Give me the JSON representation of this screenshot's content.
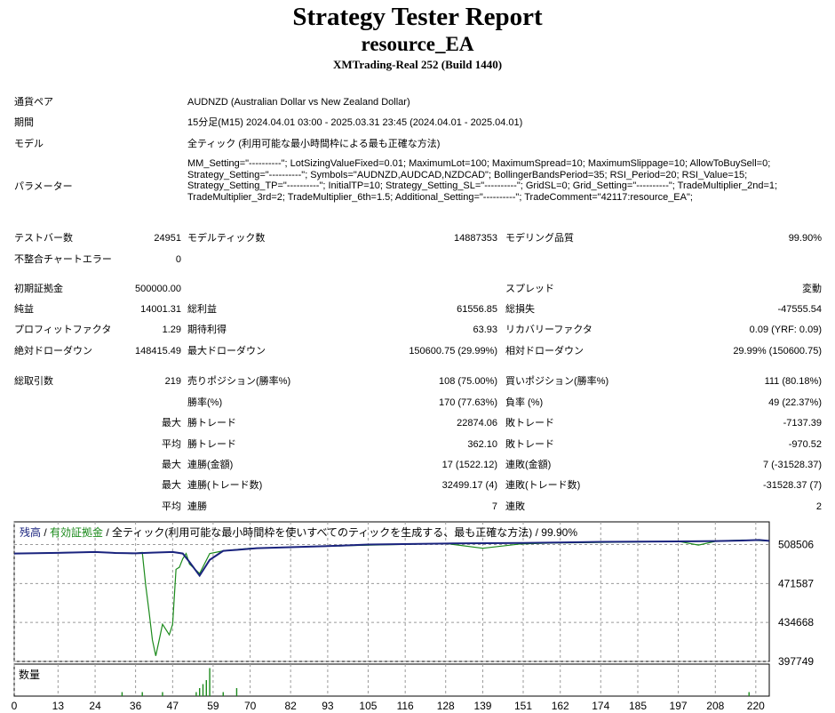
{
  "header": {
    "title": "Strategy Tester Report",
    "ea_name": "resource_EA",
    "server": "XMTrading-Real 252 (Build 1440)"
  },
  "info": {
    "pair_label": "通貨ペア",
    "pair_value": "AUDNZD (Australian Dollar vs New Zealand Dollar)",
    "period_label": "期間",
    "period_value": "15分足(M15) 2024.04.01 03:00 - 2025.03.31 23:45 (2024.04.01 - 2025.04.01)",
    "model_label": "モデル",
    "model_value": "全ティック (利用可能な最小時間枠による最も正確な方法)",
    "params_label": "パラメーター",
    "params_value": "MM_Setting=\"----------\"; LotSizingValueFixed=0.01; MaximumLot=100; MaximumSpread=10; MaximumSlippage=10; AllowToBuySell=0; Strategy_Setting=\"----------\"; Symbols=\"AUDNZD,AUDCAD,NZDCAD\"; BollingerBandsPeriod=35; RSI_Period=20; RSI_Value=15; Strategy_Setting_TP=\"----------\"; InitialTP=10; Strategy_Setting_SL=\"----------\"; GridSL=0; Grid_Setting=\"----------\"; TradeMultiplier_2nd=1; TradeMultiplier_3rd=2; TradeMultiplier_6th=1.5; Additional_Setting=\"----------\"; TradeComment=\"42117:resource_EA\";"
  },
  "stats": {
    "bars_label": "テストバー数",
    "bars_value": "24951",
    "ticks_label": "モデルティック数",
    "ticks_value": "14887353",
    "quality_label": "モデリング品質",
    "quality_value": "99.90%",
    "mismatch_label": "不整合チャートエラー",
    "mismatch_value": "0",
    "deposit_label": "初期証拠金",
    "deposit_value": "500000.00",
    "spread_label": "スプレッド",
    "spread_value": "変動",
    "net_label": "純益",
    "net_value": "14001.31",
    "gross_profit_label": "総利益",
    "gross_profit_value": "61556.85",
    "gross_loss_label": "総損失",
    "gross_loss_value": "-47555.54",
    "pf_label": "プロフィットファクタ",
    "pf_value": "1.29",
    "expected_label": "期待利得",
    "expected_value": "63.93",
    "recovery_label": "リカバリーファクタ",
    "recovery_value": "0.09 (YRF: 0.09)",
    "abs_dd_label": "絶対ドローダウン",
    "abs_dd_value": "148415.49",
    "max_dd_label": "最大ドローダウン",
    "max_dd_value": "150600.75 (29.99%)",
    "rel_dd_label": "相対ドローダウン",
    "rel_dd_value": "29.99% (150600.75)",
    "total_label": "総取引数",
    "total_value": "219",
    "short_label": "売りポジション(勝率%)",
    "short_value": "108 (75.00%)",
    "long_label": "買いポジション(勝率%)",
    "long_value": "111 (80.18%)",
    "winrate_label": "勝率(%)",
    "winrate_value": "170 (77.63%)",
    "lossrate_label": "負率 (%)",
    "lossrate_value": "49 (22.37%)",
    "max_word": "最大",
    "avg_word": "平均",
    "win_trade_label": "勝トレード",
    "max_win_value": "22874.06",
    "loss_trade_label": "敗トレード",
    "max_loss_value": "-7137.39",
    "avg_win_value": "362.10",
    "avg_loss_value": "-970.52",
    "cons_win_amt_label": "連勝(金額)",
    "cons_win_amt_value": "17 (1522.12)",
    "cons_loss_amt_label": "連敗(金額)",
    "cons_loss_amt_value": "7 (-31528.37)",
    "cons_win_cnt_label": "連勝(トレード数)",
    "cons_win_cnt_value": "32499.17 (4)",
    "cons_loss_cnt_label": "連敗(トレード数)",
    "cons_loss_cnt_value": "-31528.37 (7)",
    "avg_cons_win_label": "連勝",
    "avg_cons_win_value": "7",
    "avg_cons_loss_label": "連敗",
    "avg_cons_loss_value": "2"
  },
  "chart_legend": {
    "balance": "残高",
    "sep1": " / ",
    "equity": "有効証拠金",
    "rest": " / 全ティック(利用可能な最小時間枠を使いすべてのティックを生成する、最も正確な方法) / 99.90%",
    "volume_label": "数量",
    "balance_color": "#1a237e",
    "equity_color": "#1b8a1b"
  },
  "chart_data": {
    "type": "line",
    "y_ticks": [
      508506,
      471587,
      434668,
      397749
    ],
    "x_ticks": [
      0,
      13,
      24,
      36,
      47,
      59,
      70,
      82,
      93,
      105,
      116,
      128,
      139,
      151,
      162,
      174,
      185,
      197,
      208,
      220
    ],
    "ylim": [
      397749,
      530000
    ],
    "xlim": [
      0,
      224
    ],
    "series": [
      {
        "name": "残高",
        "x": [
          0,
          13,
          24,
          30,
          36,
          41,
          47,
          50,
          52,
          55,
          58,
          62,
          66,
          72,
          93,
          105,
          128,
          151,
          174,
          197,
          208,
          216,
          221,
          224
        ],
        "y": [
          500000,
          500600,
          501500,
          500500,
          500200,
          500800,
          501500,
          500000,
          492000,
          479000,
          494000,
          502500,
          503500,
          505000,
          507000,
          508500,
          509500,
          510000,
          511000,
          511500,
          511800,
          512300,
          512800,
          512000
        ]
      },
      {
        "name": "有効証拠金",
        "x": [
          0,
          24,
          35,
          38,
          39,
          40,
          41,
          42,
          43,
          44,
          45,
          46,
          47,
          48,
          49,
          50,
          51,
          52,
          55,
          58,
          62,
          70,
          100,
          128,
          139,
          150,
          160,
          197,
          203,
          208,
          212,
          216,
          224
        ],
        "y": [
          500000,
          501500,
          500000,
          501000,
          470000,
          445000,
          418000,
          403000,
          418000,
          433000,
          428000,
          423000,
          433000,
          485000,
          487000,
          495000,
          500000,
          490000,
          481000,
          500000,
          502500,
          505000,
          507500,
          509500,
          505000,
          509000,
          510000,
          511500,
          508000,
          511500,
          512200,
          512800,
          512000
        ]
      }
    ],
    "volume": [
      {
        "x": 32,
        "v": 1
      },
      {
        "x": 38,
        "v": 1
      },
      {
        "x": 44,
        "v": 1
      },
      {
        "x": 54,
        "v": 1
      },
      {
        "x": 55,
        "v": 2
      },
      {
        "x": 56,
        "v": 3
      },
      {
        "x": 57,
        "v": 4
      },
      {
        "x": 58,
        "v": 7
      },
      {
        "x": 62,
        "v": 1
      },
      {
        "x": 66,
        "v": 2
      },
      {
        "x": 218,
        "v": 1
      }
    ]
  }
}
